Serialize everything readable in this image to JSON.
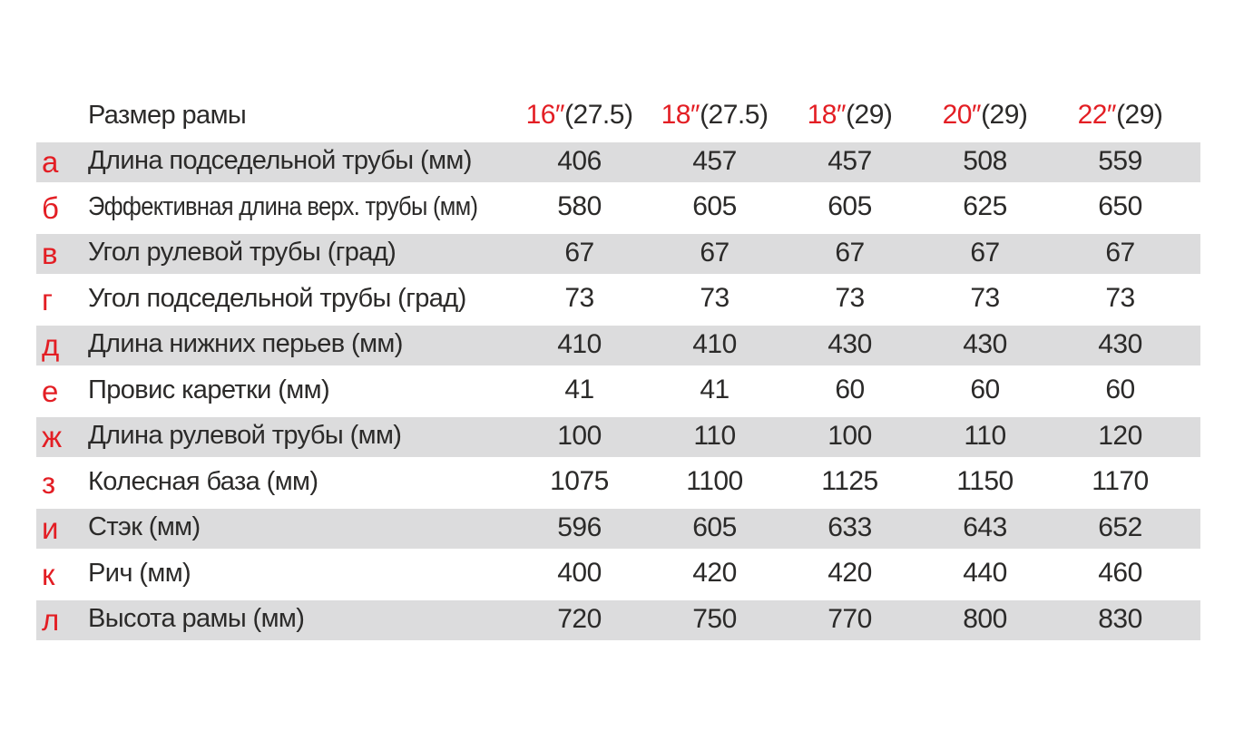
{
  "colors": {
    "accent_red": "#e31e24",
    "text_dark": "#2b2a29",
    "stripe_gray": "#dcdcdd",
    "background": "#ffffff"
  },
  "chart_data": {
    "type": "table",
    "header": {
      "label": "Размер рамы",
      "columns": [
        {
          "size": "16″",
          "wheel": "(27.5)"
        },
        {
          "size": "18″",
          "wheel": "(27.5)"
        },
        {
          "size": "18″",
          "wheel": "(29)"
        },
        {
          "size": "20″",
          "wheel": "(29)"
        },
        {
          "size": "22″",
          "wheel": "(29)"
        }
      ]
    },
    "rows": [
      {
        "letter": "а",
        "name": "Длина подседельной трубы (мм)",
        "values": [
          406,
          457,
          457,
          508,
          559
        ]
      },
      {
        "letter": "б",
        "name": "Эффективная длина верх. трубы (мм)",
        "values": [
          580,
          605,
          605,
          625,
          650
        ]
      },
      {
        "letter": "в",
        "name": "Угол рулевой трубы (град)",
        "values": [
          67,
          67,
          67,
          67,
          67
        ]
      },
      {
        "letter": "г",
        "name": "Угол подседельной трубы (град)",
        "values": [
          73,
          73,
          73,
          73,
          73
        ]
      },
      {
        "letter": "д",
        "name": "Длина нижних перьев (мм)",
        "values": [
          410,
          410,
          430,
          430,
          430
        ]
      },
      {
        "letter": "е",
        "name": "Провис каретки (мм)",
        "values": [
          41,
          41,
          60,
          60,
          60
        ]
      },
      {
        "letter": "ж",
        "name": "Длина рулевой трубы (мм)",
        "values": [
          100,
          110,
          100,
          110,
          120
        ]
      },
      {
        "letter": "з",
        "name": "Колесная база (мм)",
        "values": [
          1075,
          1100,
          1125,
          1150,
          1170
        ]
      },
      {
        "letter": "и",
        "name": "Стэк (мм)",
        "values": [
          596,
          605,
          633,
          643,
          652
        ]
      },
      {
        "letter": "к",
        "name": "Рич (мм)",
        "values": [
          400,
          420,
          420,
          440,
          460
        ]
      },
      {
        "letter": "л",
        "name": "Высота рамы (мм)",
        "values": [
          720,
          750,
          770,
          800,
          830
        ]
      }
    ]
  }
}
